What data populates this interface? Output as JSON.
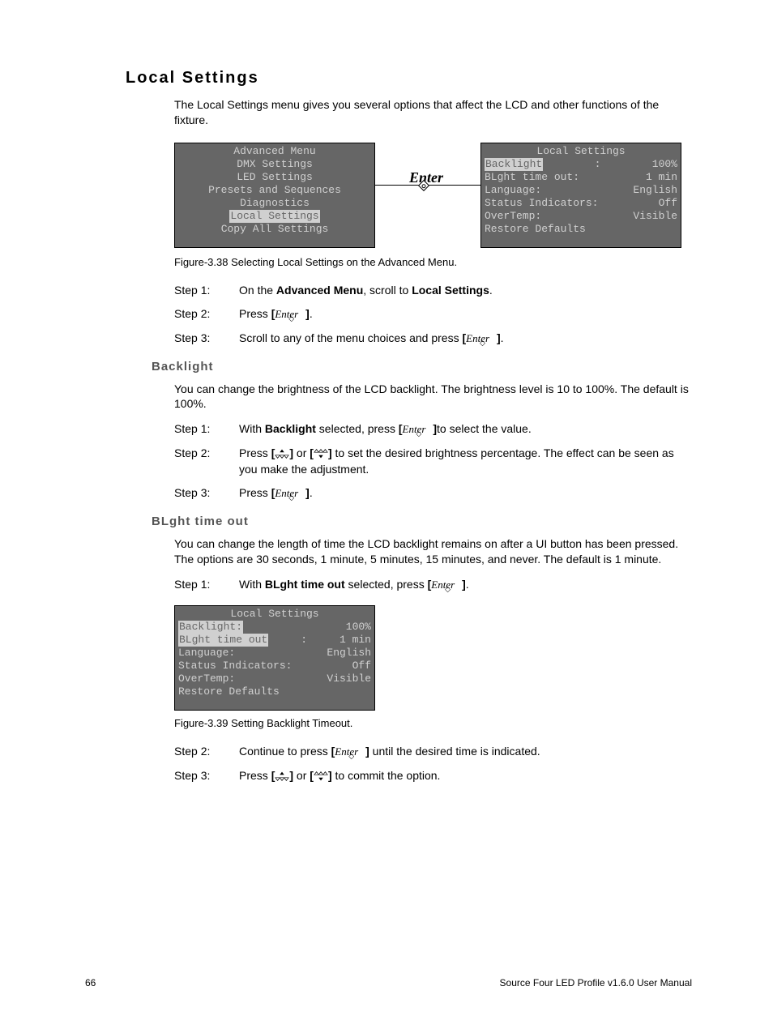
{
  "title": "Local Settings",
  "intro": "The Local Settings menu gives you several options that affect the LCD and other functions of the fixture.",
  "enter_label": "Enter",
  "lcd_left": {
    "title": "Advanced Menu",
    "items": [
      "DMX Settings",
      "LED Settings",
      "Presets and Sequences",
      "Diagnostics",
      "Local Settings",
      "Copy All Settings"
    ],
    "selected_index": 4
  },
  "lcd_right": {
    "title": "Local Settings",
    "rows": [
      {
        "label": "Backlight",
        "suffix": ":",
        "value": "100%",
        "sel": true
      },
      {
        "label": "BLght time out:",
        "value": "1 min"
      },
      {
        "label": "Language:",
        "value": "English"
      },
      {
        "label": "Status Indicators:",
        "value": "Off"
      },
      {
        "label": "OverTemp:",
        "value": "Visible"
      },
      {
        "label": "Restore Defaults",
        "value": ""
      }
    ]
  },
  "fig1_caption": "Figure-3.38 Selecting Local Settings on the Advanced Menu.",
  "steps_a": [
    {
      "label": "Step 1:",
      "pre": "On the ",
      "b1": "Advanced Menu",
      "mid": ", scroll to ",
      "b2": "Local Settings",
      "post": "."
    },
    {
      "label": "Step 2:",
      "pre": "Press ",
      "enter": true,
      "post": "."
    },
    {
      "label": "Step 3:",
      "pre": "Scroll to any of the menu choices and press ",
      "enter": true,
      "post": "."
    }
  ],
  "backlight": {
    "heading": "Backlight",
    "intro": "You can change the brightness of the LCD backlight. The brightness level is 10 to 100%. The default is 100%.",
    "steps": [
      {
        "label": "Step 1:",
        "pre": "With ",
        "b1": "Backlight",
        "mid": " selected, press ",
        "enter": true,
        "post": "to select the value."
      },
      {
        "label": "Step 2:",
        "pre": "Press ",
        "updown": true,
        "post": " to set the desired brightness percentage. The effect can be seen as you make the adjustment."
      },
      {
        "label": "Step 3:",
        "pre": "Press ",
        "enter": true,
        "post": "."
      }
    ]
  },
  "blght": {
    "heading": "BLght time out",
    "intro": "You can change the length of time the LCD backlight remains on after a UI button has been pressed. The options are 30 seconds, 1 minute, 5 minutes, 15 minutes, and never. The default is 1 minute.",
    "step1": {
      "label": "Step 1:",
      "pre": "With ",
      "b1": "BLght time out",
      "mid": " selected, press ",
      "enter": true,
      "post": "."
    }
  },
  "lcd_bottom": {
    "title": "Local Settings",
    "rows": [
      {
        "label": "Backlight:",
        "value": "100%",
        "sel_label": true
      },
      {
        "label": "BLght time out",
        "suffix": ":",
        "value": "1 min",
        "sel": true
      },
      {
        "label": "Language:",
        "value": "English"
      },
      {
        "label": "Status Indicators:",
        "value": "Off"
      },
      {
        "label": "OverTemp:",
        "value": "Visible"
      },
      {
        "label": "Restore Defaults",
        "value": ""
      }
    ]
  },
  "fig2_caption": "Figure-3.39 Setting Backlight Timeout.",
  "steps_b": [
    {
      "label": "Step 2:",
      "pre": "Continue to press ",
      "enter": true,
      "post": " until the desired time is indicated."
    },
    {
      "label": "Step 3:",
      "pre": "Press ",
      "updown": true,
      "post": " to commit the option."
    }
  ],
  "footer": {
    "page": "66",
    "doc": "Source Four LED Profile v1.6.0 User Manual"
  }
}
